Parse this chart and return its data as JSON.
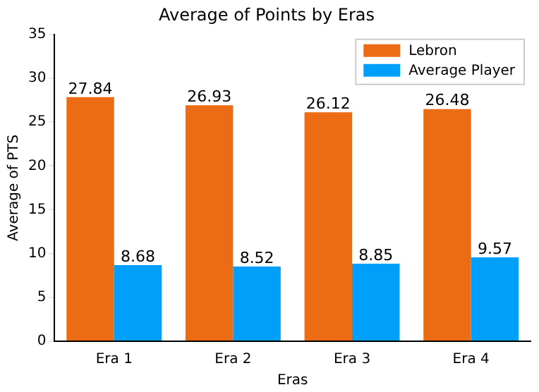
{
  "chart_data": {
    "type": "bar",
    "title": "Average of Points by Eras",
    "xlabel": "Eras",
    "ylabel": "Average of PTS",
    "categories": [
      "Era 1",
      "Era 2",
      "Era 3",
      "Era 4"
    ],
    "series": [
      {
        "name": "Lebron",
        "color": "#ec6b15",
        "values": [
          27.84,
          26.93,
          26.12,
          26.48
        ]
      },
      {
        "name": "Average Player",
        "color": "#009ffa",
        "values": [
          8.68,
          8.52,
          8.85,
          9.57
        ]
      }
    ],
    "ylim": [
      0,
      35
    ],
    "yticks": [
      0,
      5,
      10,
      15,
      20,
      25,
      30,
      35
    ],
    "grid": false,
    "legend": "top right",
    "data_labels": true
  }
}
